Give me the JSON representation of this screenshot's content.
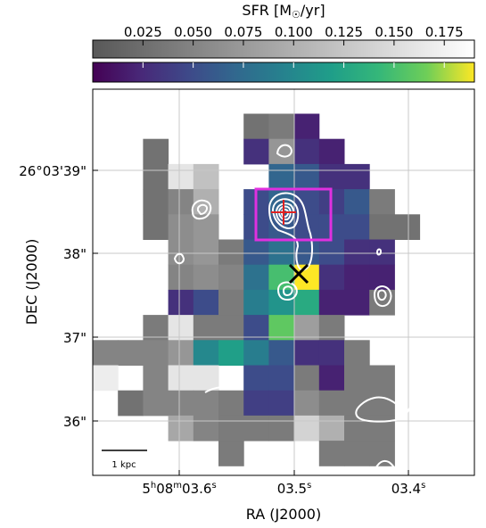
{
  "chart_data": {
    "type": "heatmap",
    "colorbar": {
      "title": "SFR [M",
      "title_sub": "☉",
      "title_tail": "/yr]",
      "ticks": [
        0.025,
        0.05,
        0.075,
        0.1,
        0.125,
        0.15,
        0.175
      ],
      "tick_labels": [
        "0.025",
        "0.050",
        "0.075",
        "0.100",
        "0.125",
        "0.150",
        "0.175"
      ],
      "range": [
        0.0,
        0.19
      ]
    },
    "xlabel": "RA (J2000)",
    "ylabel": "DEC (J2000)",
    "x_ticks": [
      {
        "main": "5",
        "sup1": "h",
        "mid": "08",
        "sup2": "m",
        "tail": "03.6",
        "sup3": "s"
      },
      {
        "main": "",
        "sup1": "",
        "mid": "",
        "sup2": "",
        "tail": "03.5",
        "sup3": "s"
      },
      {
        "main": "",
        "sup1": "",
        "mid": "",
        "sup2": "",
        "tail": "03.4",
        "sup3": "s"
      }
    ],
    "y_ticks": [
      "26°03'39\"",
      "38\"",
      "37\"",
      "36\""
    ],
    "scale_bar_label": "1 kpc",
    "grid": true,
    "grid_columns": 13,
    "grid_rows": 14,
    "colors": {
      "gray_low": "#585858",
      "gray_high": "#f4f4f4",
      "box": "#e030e0",
      "cross_red": "#e02020",
      "cross_black": "#000000",
      "contour": "#ffffff"
    },
    "cells": [
      {
        "row": 0,
        "col": 6,
        "gray": 0.03
      },
      {
        "row": 0,
        "col": 7,
        "gray": 0.04
      },
      {
        "row": 0,
        "col": 8,
        "sfr": 0.02
      },
      {
        "row": 1,
        "col": 2,
        "gray": 0.03
      },
      {
        "row": 1,
        "col": 6,
        "sfr": 0.03
      },
      {
        "row": 1,
        "col": 7,
        "gray": 0.07
      },
      {
        "row": 1,
        "col": 8,
        "sfr": 0.03
      },
      {
        "row": 1,
        "col": 9,
        "sfr": 0.02
      },
      {
        "row": 2,
        "col": 2,
        "gray": 0.03
      },
      {
        "row": 2,
        "col": 3,
        "gray": 0.16
      },
      {
        "row": 2,
        "col": 4,
        "gray": 0.12
      },
      {
        "row": 2,
        "col": 7,
        "sfr": 0.07
      },
      {
        "row": 2,
        "col": 8,
        "sfr": 0.06
      },
      {
        "row": 2,
        "col": 9,
        "sfr": 0.03
      },
      {
        "row": 2,
        "col": 10,
        "sfr": 0.03
      },
      {
        "row": 3,
        "col": 2,
        "gray": 0.03
      },
      {
        "row": 3,
        "col": 3,
        "gray": 0.05
      },
      {
        "row": 3,
        "col": 4,
        "gray": 0.1
      },
      {
        "row": 3,
        "col": 6,
        "sfr": 0.05
      },
      {
        "row": 3,
        "col": 7,
        "sfr": 0.07
      },
      {
        "row": 3,
        "col": 8,
        "sfr": 0.05
      },
      {
        "row": 3,
        "col": 9,
        "sfr": 0.04
      },
      {
        "row": 3,
        "col": 10,
        "sfr": 0.06
      },
      {
        "row": 3,
        "col": 11,
        "gray": 0.04
      },
      {
        "row": 4,
        "col": 2,
        "gray": 0.03
      },
      {
        "row": 4,
        "col": 3,
        "gray": 0.06
      },
      {
        "row": 4,
        "col": 4,
        "gray": 0.07
      },
      {
        "row": 4,
        "col": 6,
        "sfr": 0.05
      },
      {
        "row": 4,
        "col": 7,
        "sfr": 0.06
      },
      {
        "row": 4,
        "col": 8,
        "sfr": 0.05
      },
      {
        "row": 4,
        "col": 9,
        "sfr": 0.05
      },
      {
        "row": 4,
        "col": 10,
        "sfr": 0.05
      },
      {
        "row": 4,
        "col": 11,
        "gray": 0.03
      },
      {
        "row": 4,
        "col": 12,
        "gray": 0.03
      },
      {
        "row": 5,
        "col": 3,
        "gray": 0.06
      },
      {
        "row": 5,
        "col": 4,
        "gray": 0.07
      },
      {
        "row": 5,
        "col": 5,
        "gray": 0.04
      },
      {
        "row": 5,
        "col": 6,
        "sfr": 0.06
      },
      {
        "row": 5,
        "col": 7,
        "sfr": 0.08
      },
      {
        "row": 5,
        "col": 8,
        "sfr": 0.06
      },
      {
        "row": 5,
        "col": 9,
        "sfr": 0.05
      },
      {
        "row": 5,
        "col": 10,
        "sfr": 0.03
      },
      {
        "row": 5,
        "col": 11,
        "sfr": 0.03
      },
      {
        "row": 6,
        "col": 3,
        "gray": 0.05
      },
      {
        "row": 6,
        "col": 4,
        "gray": 0.06
      },
      {
        "row": 6,
        "col": 5,
        "gray": 0.05
      },
      {
        "row": 6,
        "col": 6,
        "sfr": 0.08
      },
      {
        "row": 6,
        "col": 7,
        "sfr": 0.15
      },
      {
        "row": 6,
        "col": 8,
        "sfr": 0.19
      },
      {
        "row": 6,
        "col": 9,
        "sfr": 0.03
      },
      {
        "row": 6,
        "col": 10,
        "sfr": 0.02
      },
      {
        "row": 6,
        "col": 11,
        "sfr": 0.02
      },
      {
        "row": 7,
        "col": 3,
        "sfr": 0.03
      },
      {
        "row": 7,
        "col": 4,
        "sfr": 0.05
      },
      {
        "row": 7,
        "col": 5,
        "gray": 0.04
      },
      {
        "row": 7,
        "col": 6,
        "sfr": 0.09
      },
      {
        "row": 7,
        "col": 7,
        "sfr": 0.11
      },
      {
        "row": 7,
        "col": 8,
        "sfr": 0.13
      },
      {
        "row": 7,
        "col": 9,
        "sfr": 0.02
      },
      {
        "row": 7,
        "col": 10,
        "sfr": 0.02
      },
      {
        "row": 7,
        "col": 11,
        "gray": 0.04
      },
      {
        "row": 8,
        "col": 2,
        "gray": 0.04
      },
      {
        "row": 8,
        "col": 3,
        "gray": 0.16
      },
      {
        "row": 8,
        "col": 4,
        "gray": 0.04
      },
      {
        "row": 8,
        "col": 5,
        "gray": 0.04
      },
      {
        "row": 8,
        "col": 6,
        "sfr": 0.05
      },
      {
        "row": 8,
        "col": 7,
        "sfr": 0.16
      },
      {
        "row": 8,
        "col": 8,
        "gray": 0.08
      },
      {
        "row": 8,
        "col": 9,
        "gray": 0.04
      },
      {
        "row": 9,
        "col": 0,
        "gray": 0.05
      },
      {
        "row": 9,
        "col": 1,
        "gray": 0.05
      },
      {
        "row": 9,
        "col": 2,
        "gray": 0.05
      },
      {
        "row": 9,
        "col": 3,
        "gray": 0.07
      },
      {
        "row": 9,
        "col": 4,
        "sfr": 0.1
      },
      {
        "row": 9,
        "col": 5,
        "sfr": 0.12
      },
      {
        "row": 9,
        "col": 6,
        "sfr": 0.09
      },
      {
        "row": 9,
        "col": 7,
        "sfr": 0.06
      },
      {
        "row": 9,
        "col": 8,
        "sfr": 0.03
      },
      {
        "row": 9,
        "col": 9,
        "sfr": 0.03
      },
      {
        "row": 9,
        "col": 10,
        "gray": 0.04
      },
      {
        "row": 10,
        "col": 0,
        "gray": 0.17
      },
      {
        "row": 10,
        "col": 2,
        "gray": 0.05
      },
      {
        "row": 10,
        "col": 3,
        "gray": 0.16
      },
      {
        "row": 10,
        "col": 4,
        "gray": 0.16
      },
      {
        "row": 10,
        "col": 6,
        "sfr": 0.05
      },
      {
        "row": 10,
        "col": 7,
        "sfr": 0.05
      },
      {
        "row": 10,
        "col": 8,
        "gray": 0.04
      },
      {
        "row": 10,
        "col": 9,
        "sfr": 0.02
      },
      {
        "row": 10,
        "col": 10,
        "gray": 0.04
      },
      {
        "row": 10,
        "col": 11,
        "gray": 0.04
      },
      {
        "row": 11,
        "col": 1,
        "gray": 0.03
      },
      {
        "row": 11,
        "col": 2,
        "gray": 0.05
      },
      {
        "row": 11,
        "col": 3,
        "gray": 0.05
      },
      {
        "row": 11,
        "col": 4,
        "gray": 0.05
      },
      {
        "row": 11,
        "col": 5,
        "gray": 0.04
      },
      {
        "row": 11,
        "col": 6,
        "sfr": 0.04
      },
      {
        "row": 11,
        "col": 7,
        "sfr": 0.04
      },
      {
        "row": 11,
        "col": 8,
        "gray": 0.06
      },
      {
        "row": 11,
        "col": 9,
        "gray": 0.04
      },
      {
        "row": 11,
        "col": 10,
        "gray": 0.04
      },
      {
        "row": 11,
        "col": 11,
        "gray": 0.04
      },
      {
        "row": 12,
        "col": 3,
        "gray": 0.09
      },
      {
        "row": 12,
        "col": 4,
        "gray": 0.05
      },
      {
        "row": 12,
        "col": 5,
        "gray": 0.04
      },
      {
        "row": 12,
        "col": 6,
        "gray": 0.04
      },
      {
        "row": 12,
        "col": 7,
        "gray": 0.04
      },
      {
        "row": 12,
        "col": 8,
        "gray": 0.14
      },
      {
        "row": 12,
        "col": 9,
        "gray": 0.1
      },
      {
        "row": 12,
        "col": 10,
        "gray": 0.04
      },
      {
        "row": 12,
        "col": 11,
        "gray": 0.04
      },
      {
        "row": 13,
        "col": 5,
        "gray": 0.04
      },
      {
        "row": 13,
        "col": 9,
        "gray": 0.04
      },
      {
        "row": 13,
        "col": 10,
        "gray": 0.04
      },
      {
        "row": 13,
        "col": 11,
        "gray": 0.04
      }
    ]
  }
}
